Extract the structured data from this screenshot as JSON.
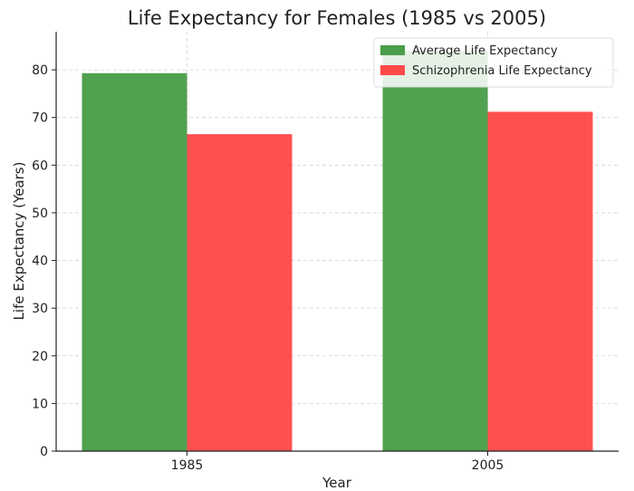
{
  "chart_data": {
    "type": "bar",
    "title": "Life Expectancy for Females (1985 vs 2005)",
    "xlabel": "Year",
    "ylabel": "Life Expectancy (Years)",
    "categories": [
      "1985",
      "2005"
    ],
    "series": [
      {
        "name": "Average Life Expectancy",
        "values": [
          79.3,
          84.0
        ],
        "color": "#4a9e4a"
      },
      {
        "name": "Schizophrenia Life Expectancy",
        "values": [
          66.5,
          71.2
        ],
        "color": "#ff4a4a"
      }
    ],
    "ylim": [
      0,
      88
    ],
    "yticks": [
      0,
      10,
      20,
      30,
      40,
      50,
      60,
      70,
      80
    ],
    "grid": true,
    "legend_position": "top-right"
  }
}
